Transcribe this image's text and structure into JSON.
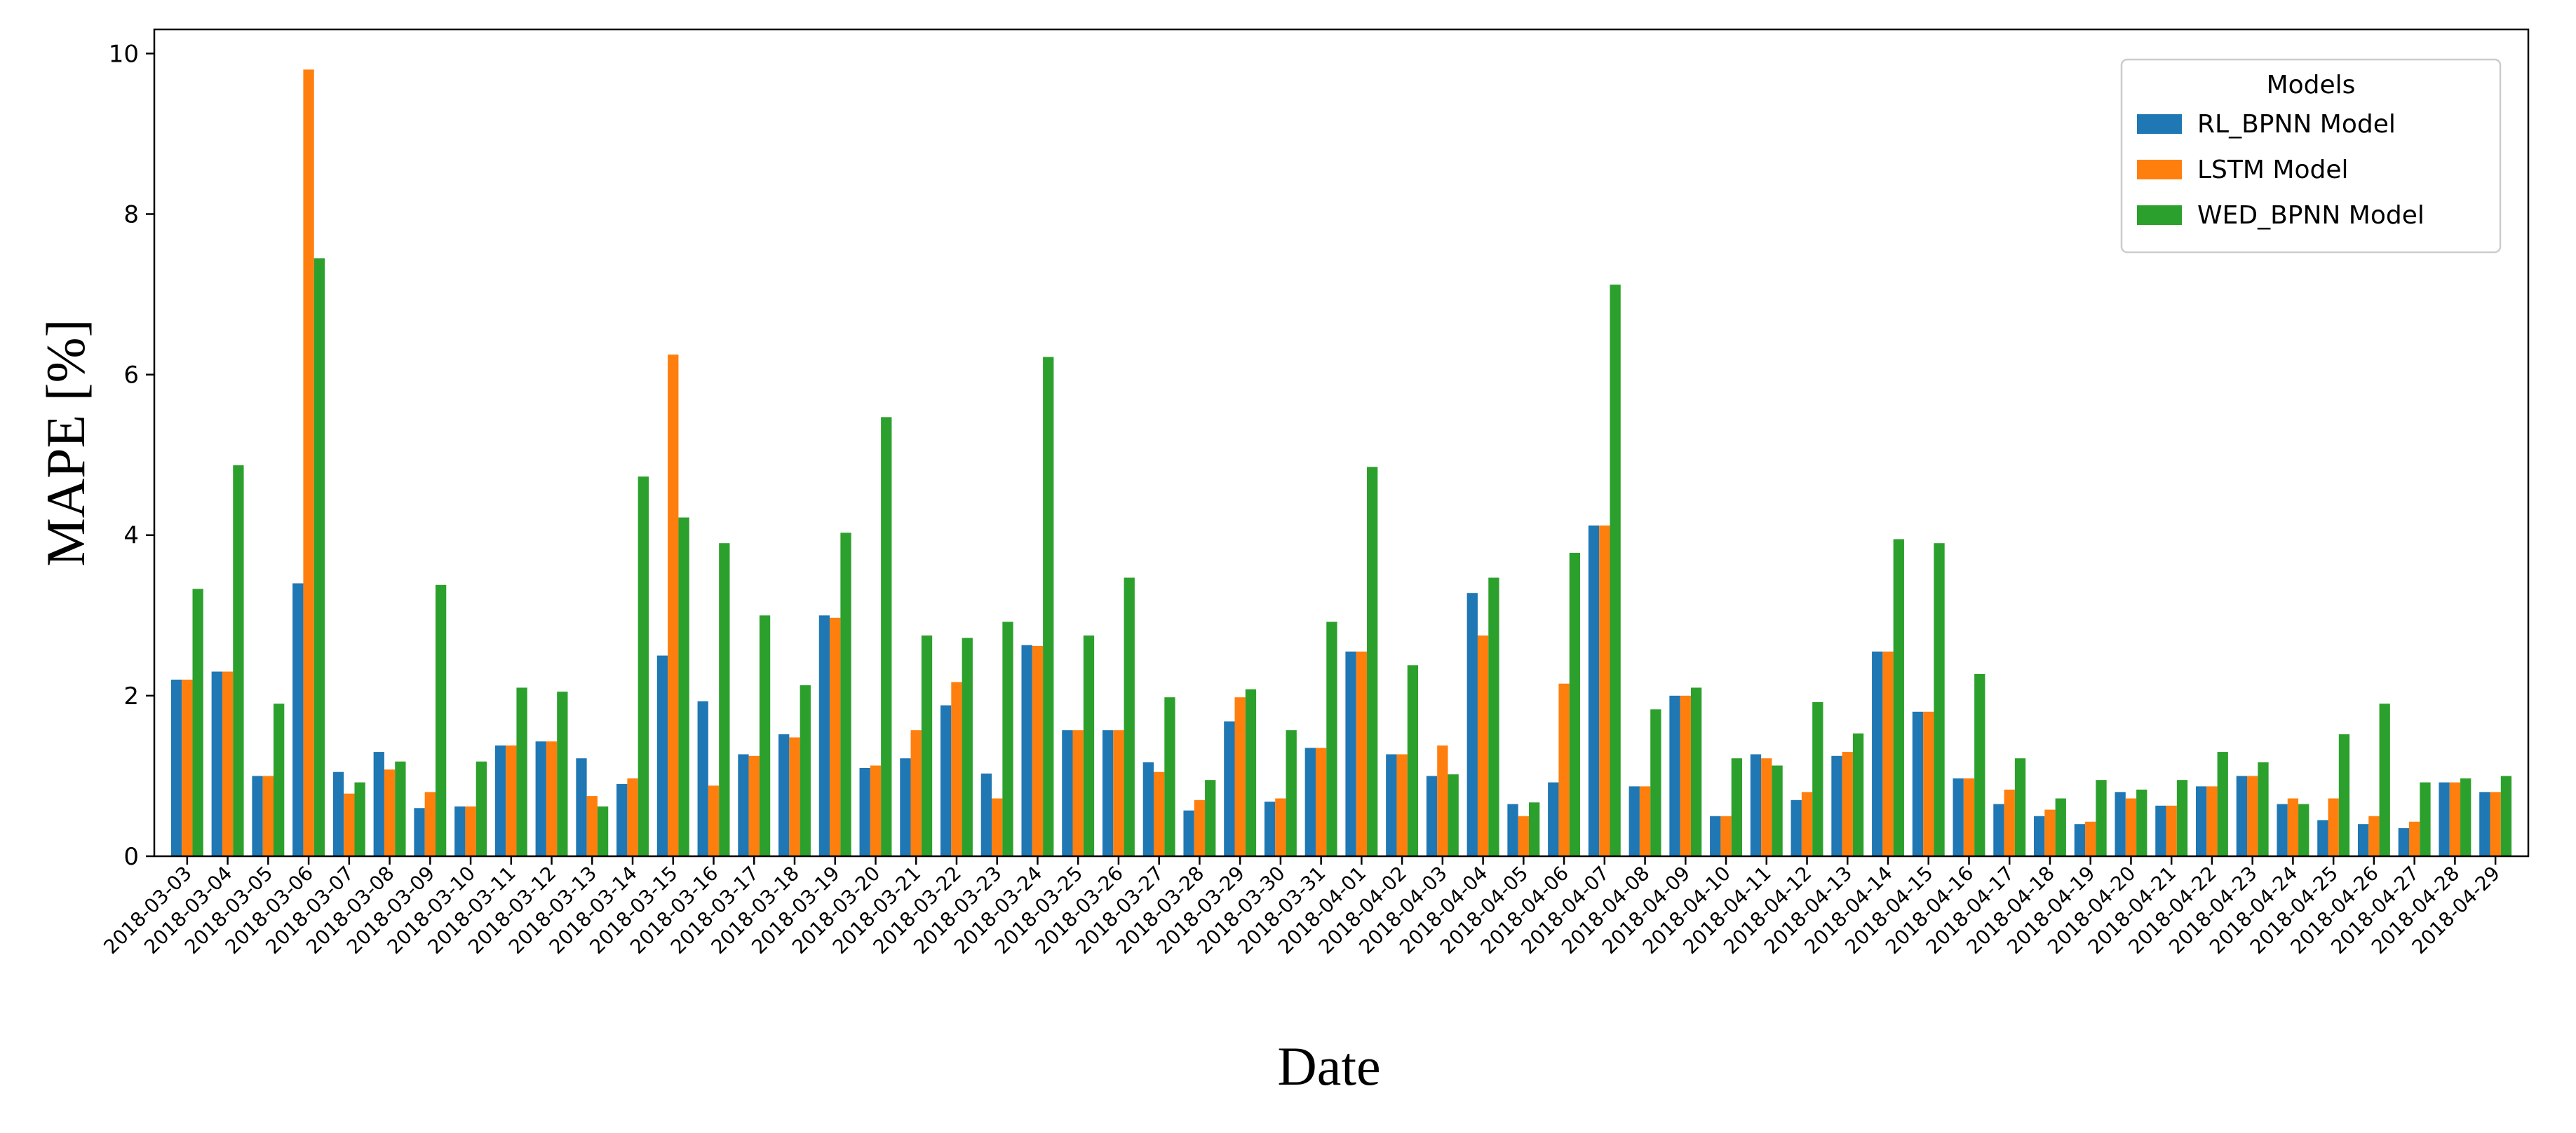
{
  "chart_data": {
    "type": "bar",
    "xlabel": "Date",
    "ylabel": "MAPE [%]",
    "ylim": [
      0,
      10.3
    ],
    "yticks": [
      0,
      2,
      4,
      6,
      8,
      10
    ],
    "grid": false,
    "legend": {
      "title": "Models",
      "placement": "top-right"
    },
    "categories": [
      "2018-03-03",
      "2018-03-04",
      "2018-03-05",
      "2018-03-06",
      "2018-03-07",
      "2018-03-08",
      "2018-03-09",
      "2018-03-10",
      "2018-03-11",
      "2018-03-12",
      "2018-03-13",
      "2018-03-14",
      "2018-03-15",
      "2018-03-16",
      "2018-03-17",
      "2018-03-18",
      "2018-03-19",
      "2018-03-20",
      "2018-03-21",
      "2018-03-22",
      "2018-03-23",
      "2018-03-24",
      "2018-03-25",
      "2018-03-26",
      "2018-03-27",
      "2018-03-28",
      "2018-03-29",
      "2018-03-30",
      "2018-03-31",
      "2018-04-01",
      "2018-04-02",
      "2018-04-03",
      "2018-04-04",
      "2018-04-05",
      "2018-04-06",
      "2018-04-07",
      "2018-04-08",
      "2018-04-09",
      "2018-04-10",
      "2018-04-11",
      "2018-04-12",
      "2018-04-13",
      "2018-04-14",
      "2018-04-15",
      "2018-04-16",
      "2018-04-17",
      "2018-04-18",
      "2018-04-19",
      "2018-04-20",
      "2018-04-21",
      "2018-04-22",
      "2018-04-23",
      "2018-04-24",
      "2018-04-25",
      "2018-04-26",
      "2018-04-27",
      "2018-04-28",
      "2018-04-29"
    ],
    "series": [
      {
        "name": "RL_BPNN Model",
        "color": "#1f77b4",
        "values": [
          2.2,
          2.3,
          1.0,
          3.4,
          1.05,
          1.3,
          0.6,
          0.62,
          1.38,
          1.43,
          1.22,
          0.9,
          2.5,
          1.93,
          1.27,
          1.52,
          3.0,
          1.1,
          1.22,
          1.88,
          1.03,
          2.63,
          1.57,
          1.57,
          1.17,
          0.57,
          1.68,
          0.68,
          1.35,
          2.55,
          1.27,
          1.0,
          3.28,
          0.65,
          0.92,
          4.12,
          0.87,
          2.0,
          0.5,
          1.27,
          0.7,
          1.25,
          2.55,
          1.8,
          0.97,
          0.65,
          0.5,
          0.4,
          0.8,
          0.63,
          0.87,
          1.0,
          0.65,
          0.45,
          0.4,
          0.35,
          0.92,
          0.8
        ]
      },
      {
        "name": "LSTM Model",
        "color": "#ff7f0e",
        "values": [
          2.2,
          2.3,
          1.0,
          9.8,
          0.78,
          1.08,
          0.8,
          0.62,
          1.38,
          1.43,
          0.75,
          0.97,
          6.25,
          0.88,
          1.25,
          1.48,
          2.97,
          1.13,
          1.57,
          2.17,
          0.72,
          2.62,
          1.57,
          1.57,
          1.05,
          0.7,
          1.98,
          0.72,
          1.35,
          2.55,
          1.27,
          1.38,
          2.75,
          0.5,
          2.15,
          4.12,
          0.87,
          2.0,
          0.5,
          1.22,
          0.8,
          1.3,
          2.55,
          1.8,
          0.97,
          0.83,
          0.58,
          0.43,
          0.72,
          0.63,
          0.87,
          1.0,
          0.72,
          0.72,
          0.5,
          0.43,
          0.92,
          0.8
        ]
      },
      {
        "name": "WED_BPNN Model",
        "color": "#2ca02c",
        "values": [
          3.33,
          4.87,
          1.9,
          7.45,
          0.92,
          1.18,
          3.38,
          1.18,
          2.1,
          2.05,
          0.62,
          4.73,
          4.22,
          3.9,
          3.0,
          2.13,
          4.03,
          5.47,
          2.75,
          2.72,
          2.92,
          6.22,
          2.75,
          3.47,
          1.98,
          0.95,
          2.08,
          1.57,
          2.92,
          4.85,
          2.38,
          1.02,
          3.47,
          0.67,
          3.78,
          7.12,
          1.83,
          2.1,
          1.22,
          1.13,
          1.92,
          1.53,
          3.95,
          3.9,
          2.27,
          1.22,
          0.72,
          0.95,
          0.83,
          0.95,
          1.3,
          1.17,
          0.65,
          1.52,
          1.9,
          0.92,
          0.97,
          1.0
        ]
      }
    ]
  }
}
